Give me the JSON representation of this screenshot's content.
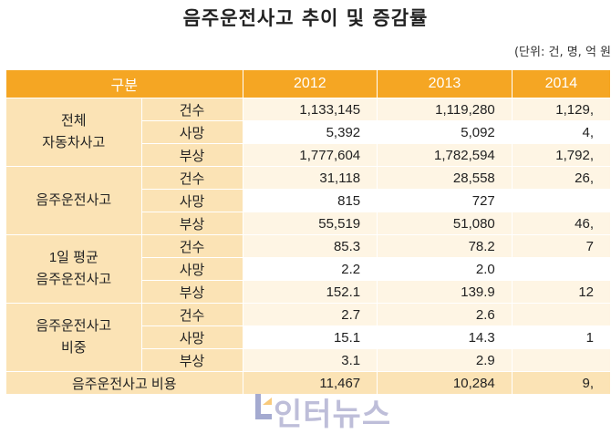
{
  "title": "음주운전사고 추이 및 증감률",
  "unit": "(단위: 건, 명, 억 원",
  "header": {
    "label": "구분",
    "years": [
      "2012",
      "2013",
      "2014"
    ]
  },
  "groups": [
    {
      "label": "전체\n자동차사고",
      "rows": [
        {
          "sub": "건수",
          "values": [
            "1,133,145",
            "1,119,280",
            "1,129,"
          ]
        },
        {
          "sub": "사망",
          "values": [
            "5,392",
            "5,092",
            "4,"
          ]
        },
        {
          "sub": "부상",
          "values": [
            "1,777,604",
            "1,782,594",
            "1,792,"
          ]
        }
      ]
    },
    {
      "label": "음주운전사고",
      "rows": [
        {
          "sub": "건수",
          "values": [
            "31,118",
            "28,558",
            "26,"
          ]
        },
        {
          "sub": "사망",
          "values": [
            "815",
            "727",
            ""
          ]
        },
        {
          "sub": "부상",
          "values": [
            "55,519",
            "51,080",
            "46,"
          ]
        }
      ]
    },
    {
      "label": "1일 평균\n음주운전사고",
      "rows": [
        {
          "sub": "건수",
          "values": [
            "85.3",
            "78.2",
            "7"
          ]
        },
        {
          "sub": "사망",
          "values": [
            "2.2",
            "2.0",
            ""
          ]
        },
        {
          "sub": "부상",
          "values": [
            "152.1",
            "139.9",
            "12"
          ]
        }
      ]
    },
    {
      "label": "음주운전사고\n비중",
      "rows": [
        {
          "sub": "건수",
          "values": [
            "2.7",
            "2.6",
            ""
          ]
        },
        {
          "sub": "사망",
          "values": [
            "15.1",
            "14.3",
            "1"
          ]
        },
        {
          "sub": "부상",
          "values": [
            "3.1",
            "2.9",
            ""
          ]
        }
      ]
    }
  ],
  "cost_row": {
    "label": "음주운전사고 비용",
    "values": [
      "11,467",
      "10,284",
      "9,"
    ]
  },
  "watermark": "인터뉴스",
  "colors": {
    "header": "#f5a623",
    "label_bg": "#fbe3b5",
    "row_alt": "#fef5e4"
  }
}
